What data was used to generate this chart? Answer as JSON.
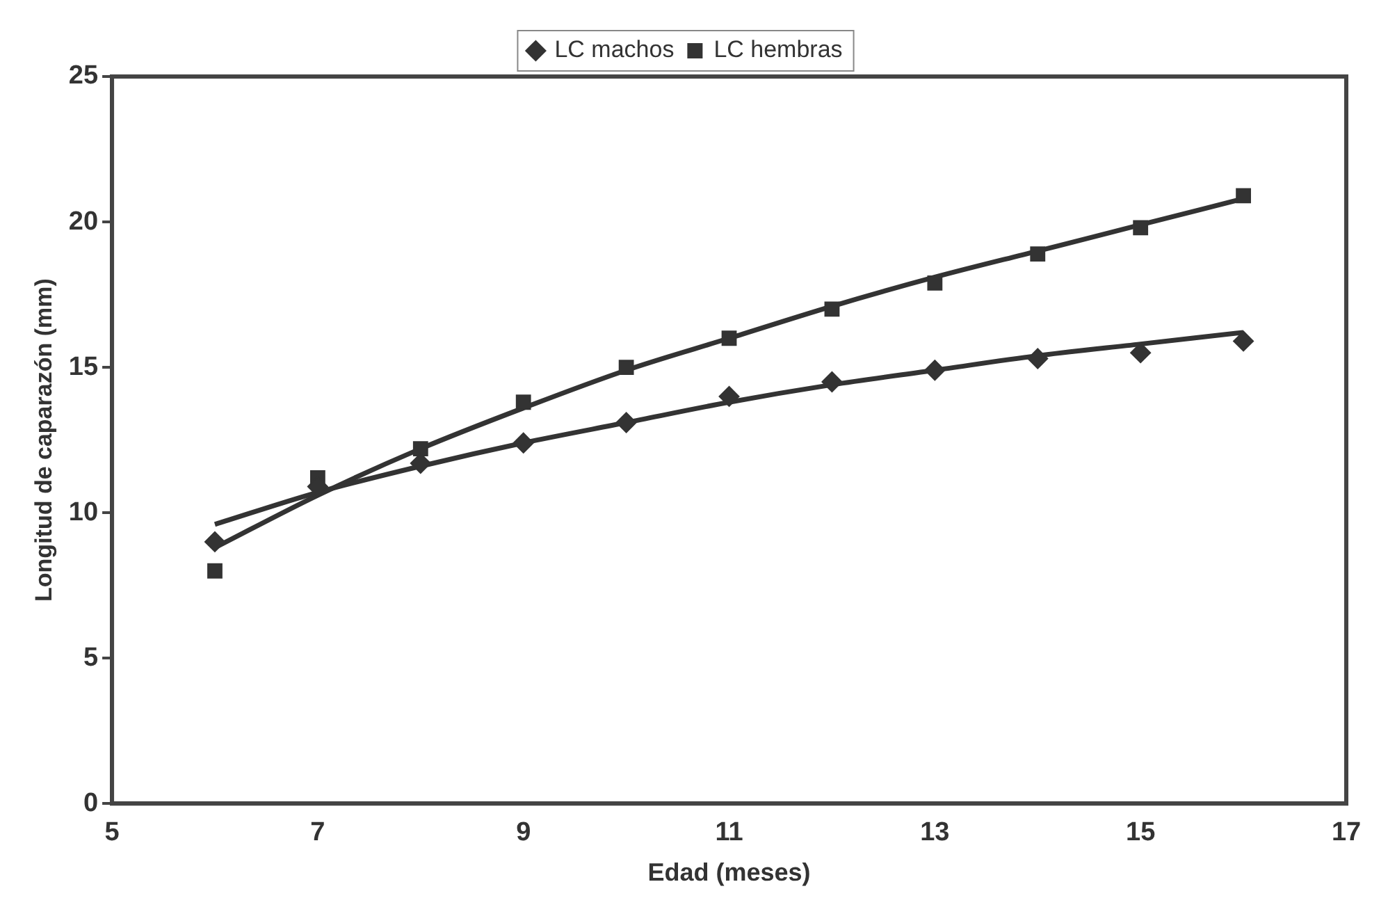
{
  "chart_data": {
    "type": "scatter",
    "xlabel": "Edad (meses)",
    "ylabel": "Longitud de caparazón (mm)",
    "x": [
      6,
      7,
      8,
      9,
      10,
      11,
      12,
      13,
      14,
      15,
      16
    ],
    "series": [
      {
        "name": "LC machos",
        "color": "#333333",
        "marker": "diamond",
        "values": [
          9.0,
          10.9,
          11.7,
          12.4,
          13.1,
          14.0,
          14.5,
          14.9,
          15.3,
          15.5,
          15.9
        ]
      },
      {
        "name": "LC hembras",
        "color": "#333333",
        "marker": "square",
        "values": [
          8.0,
          11.2,
          12.2,
          13.8,
          15.0,
          16.0,
          17.0,
          17.9,
          18.9,
          19.8,
          20.9
        ]
      },
      {
        "type": "line",
        "color": "#333333",
        "marker": "none",
        "values": [
          9.6,
          10.7,
          11.6,
          12.4,
          13.1,
          13.8,
          14.4,
          14.9,
          15.4,
          15.8,
          16.2
        ]
      },
      {
        "type": "line",
        "color": "#333333",
        "marker": "none",
        "values": [
          8.8,
          10.6,
          12.2,
          13.6,
          14.9,
          16.0,
          17.1,
          18.1,
          19.0,
          19.9,
          20.8
        ]
      }
    ],
    "xlim": [
      5,
      17
    ],
    "xticks": [
      5,
      7,
      9,
      11,
      13,
      15,
      17
    ],
    "ylim": [
      0,
      25
    ],
    "yticks": [
      0,
      5,
      10,
      15,
      20,
      25
    ],
    "grid": false,
    "legend": "top",
    "line_style": "solid"
  }
}
